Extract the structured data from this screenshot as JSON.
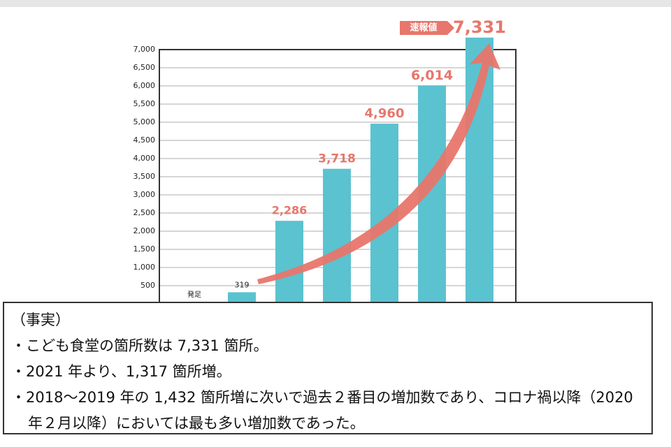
{
  "chart_data": {
    "type": "bar",
    "categories": [
      "発足",
      null,
      null,
      null,
      null,
      null,
      null
    ],
    "values": [
      null,
      319,
      2286,
      3718,
      4960,
      6014,
      7331
    ],
    "value_labels": [
      null,
      "319",
      "2,286",
      "3,718",
      "4,960",
      "6,014",
      "7,331"
    ],
    "color": "#5bc2d0",
    "label_color": "#e8766c",
    "badge": "速報値",
    "ylim": [
      0,
      7000
    ],
    "yticks": [
      500,
      {
        "value": 1000,
        "label": "1,000"
      },
      {
        "value": 1500,
        "label": "1,500"
      },
      {
        "value": 2000,
        "label": "2,000"
      },
      {
        "value": 2500,
        "label": "2,500"
      },
      {
        "value": 3000,
        "label": "3,000"
      },
      {
        "value": 3500,
        "label": "3,500"
      },
      {
        "value": 4000,
        "label": "4,000"
      },
      {
        "value": 4500,
        "label": "4,500"
      },
      {
        "value": 5000,
        "label": "5,000"
      },
      {
        "value": 5500,
        "label": "5,500"
      },
      {
        "value": 6000,
        "label": "6,000"
      },
      {
        "value": 6500,
        "label": "6,500"
      },
      {
        "value": 7000,
        "label": "7,000"
      }
    ],
    "grid": true
  },
  "facts": {
    "heading": "（事実）",
    "items": [
      "・こども食堂の箇所数は 7,331 箇所。",
      "・2021 年より、1,317 箇所増。",
      "・2018～2019 年の 1,432 箇所増に次いで過去２番目の増加数であり、コロナ禍以降（2020 年２月以降）においては最も多い増加数であった。"
    ]
  }
}
